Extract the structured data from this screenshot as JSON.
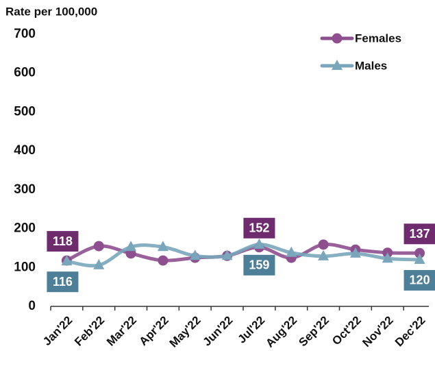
{
  "chart_data": {
    "type": "line",
    "y_axis_label": "Rate per 100,000",
    "categories": [
      "Jan'22",
      "Feb'22",
      "Mar'22",
      "Apr'22",
      "May'22",
      "Jun'22",
      "Jul'22",
      "Aug'22",
      "Sep'22",
      "Oct'22",
      "Nov'22",
      "Dec'22"
    ],
    "series": [
      {
        "name": "Females",
        "color": "#8e4f8f",
        "label_color": "#6e2c6f",
        "marker": "circle",
        "values": [
          118,
          155,
          136,
          118,
          125,
          130,
          152,
          125,
          159,
          146,
          138,
          137
        ],
        "value_labels": [
          "118",
          null,
          null,
          null,
          null,
          null,
          "152",
          null,
          null,
          null,
          null,
          "137"
        ]
      },
      {
        "name": "Males",
        "color": "#79a6bb",
        "label_color": "#4e7f98",
        "marker": "triangle",
        "values": [
          116,
          106,
          153,
          153,
          130,
          130,
          159,
          138,
          129,
          136,
          123,
          120
        ],
        "value_labels": [
          "116",
          null,
          null,
          null,
          null,
          null,
          "159",
          null,
          null,
          null,
          null,
          "120"
        ]
      }
    ],
    "ylim": [
      0,
      700
    ],
    "yticks": [
      0,
      100,
      200,
      300,
      400,
      500,
      600,
      700
    ],
    "grid": false,
    "legend": "top-right"
  }
}
